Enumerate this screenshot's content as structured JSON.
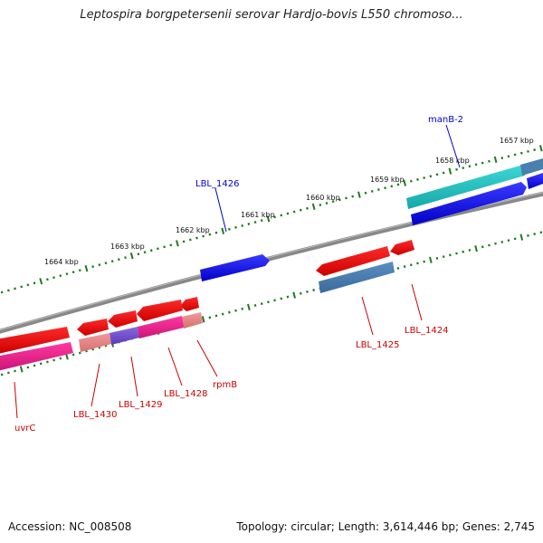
{
  "title": "Leptospira borgpetersenii serovar Hardjo-bovis L550 chromoso...",
  "footer": {
    "accession": "Accession: NC_008508",
    "topology": "Topology: circular; Length: 3,614,446 bp; Genes: 2,745"
  },
  "colors": {
    "backbone": "#7a7a7a",
    "tick": "#1f7a1f",
    "label_red": "#cc0000",
    "label_blue": "#0000cc"
  },
  "kbp_ticks": [
    {
      "label": "1657 kbp"
    },
    {
      "label": "1658 kbp"
    },
    {
      "label": "1659 kbp"
    },
    {
      "label": "1660 kbp"
    },
    {
      "label": "1661 kbp"
    },
    {
      "label": "1662 kbp"
    },
    {
      "label": "1663 kbp"
    },
    {
      "label": "1664 kbp"
    }
  ],
  "gene_labels": [
    {
      "name": "manB-2",
      "color": "blue"
    },
    {
      "name": "LBL_1426",
      "color": "blue"
    },
    {
      "name": "LBL_1425",
      "color": "red"
    },
    {
      "name": "LBL_1424",
      "color": "red"
    },
    {
      "name": "uvrC",
      "color": "red"
    },
    {
      "name": "LBL_1430",
      "color": "red"
    },
    {
      "name": "LBL_1429",
      "color": "red"
    },
    {
      "name": "LBL_1428",
      "color": "red"
    },
    {
      "name": "rpmB",
      "color": "red"
    }
  ]
}
